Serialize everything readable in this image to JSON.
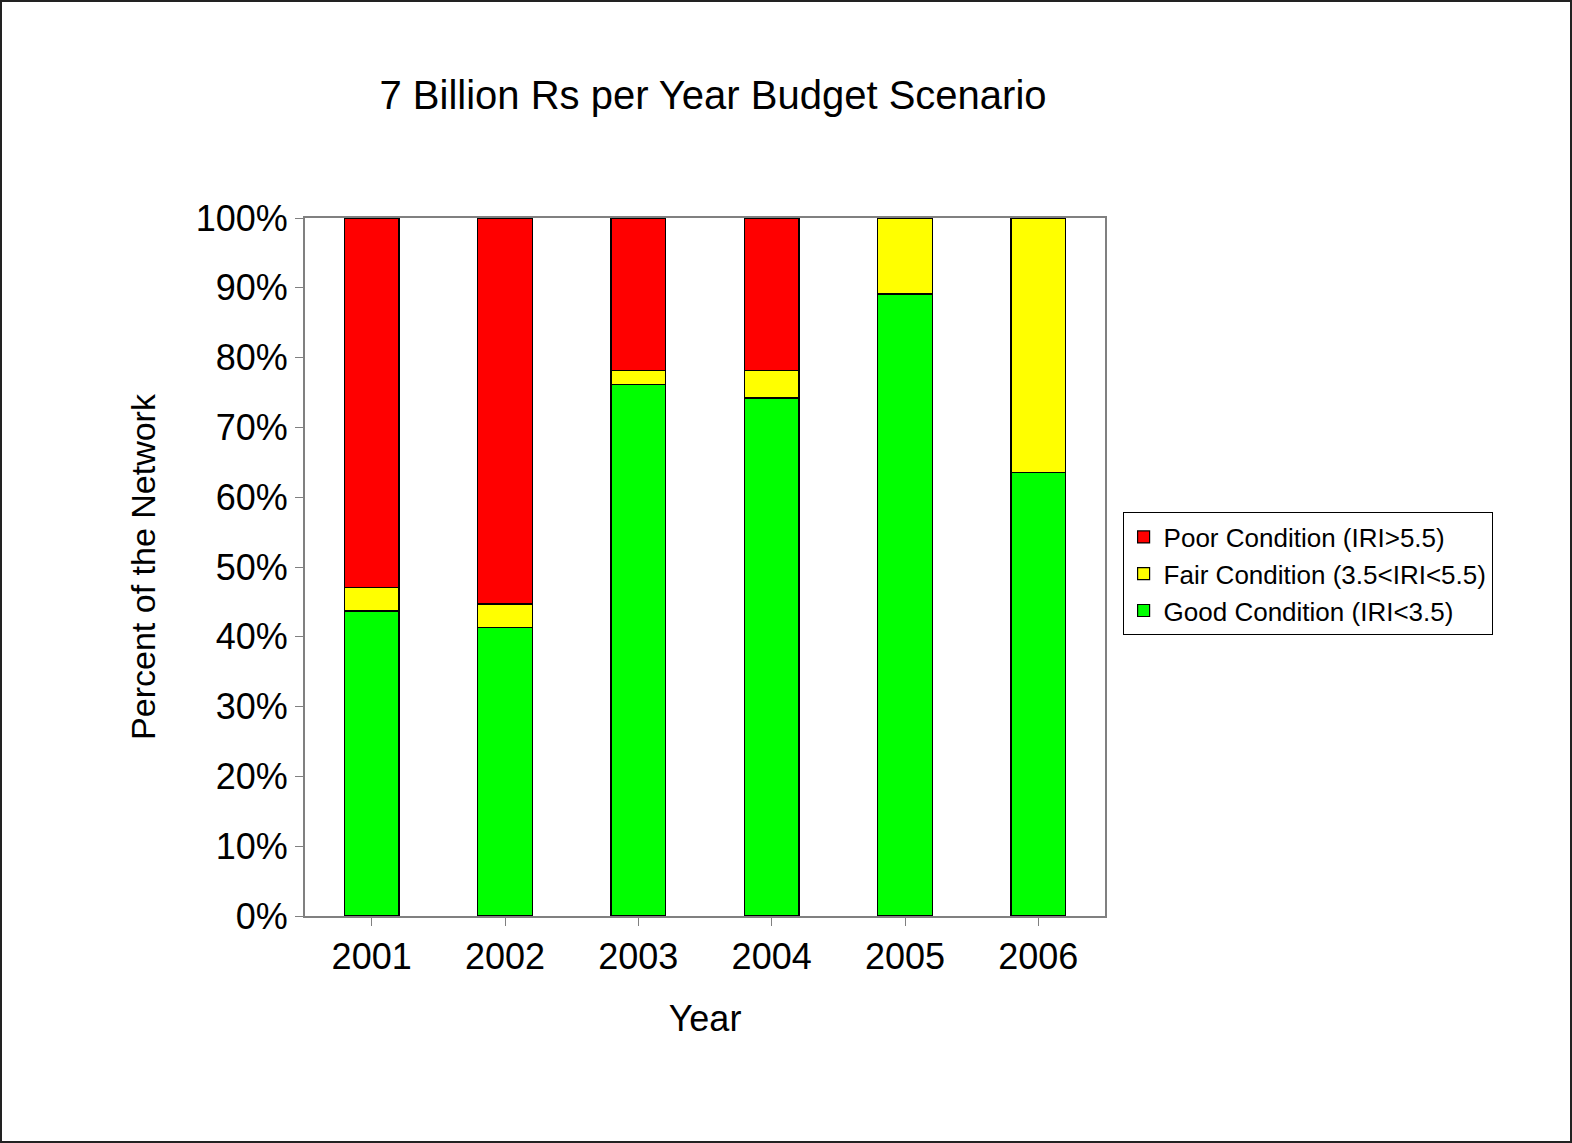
{
  "chart_data": {
    "type": "bar",
    "title": "7 Billion Rs per Year Budget Scenario",
    "x_label": "Year",
    "y_label": "Percent of the Network",
    "categories": [
      "2001",
      "2002",
      "2003",
      "2004",
      "2005",
      "2006"
    ],
    "series": [
      {
        "name": "Good Condition (IRI<3.5)",
        "color": "#00ff00",
        "values": [
          43.7,
          41.3,
          76.2,
          74.2,
          89.1,
          63.5
        ]
      },
      {
        "name": "Fair Condition (3.5<IRI<5.5)",
        "color": "#ffff00",
        "values": [
          3.4,
          3.4,
          2.0,
          4.0,
          10.9,
          36.5
        ]
      },
      {
        "name": "Poor Condition (IRI>5.5)",
        "color": "#ff0000",
        "values": [
          52.9,
          55.3,
          21.8,
          21.8,
          0,
          0
        ]
      }
    ],
    "stacked": true,
    "ylim": [
      0,
      100
    ],
    "yticks": [
      {
        "value": 0,
        "label": "0%"
      },
      {
        "value": 10,
        "label": "10%"
      },
      {
        "value": 20,
        "label": "20%"
      },
      {
        "value": 30,
        "label": "30%"
      },
      {
        "value": 40,
        "label": "40%"
      },
      {
        "value": 50,
        "label": "50%"
      },
      {
        "value": 60,
        "label": "60%"
      },
      {
        "value": 70,
        "label": "70%"
      },
      {
        "value": 80,
        "label": "80%"
      },
      {
        "value": 90,
        "label": "90%"
      },
      {
        "value": 100,
        "label": "100%"
      }
    ],
    "grid": false,
    "legend": "right"
  }
}
